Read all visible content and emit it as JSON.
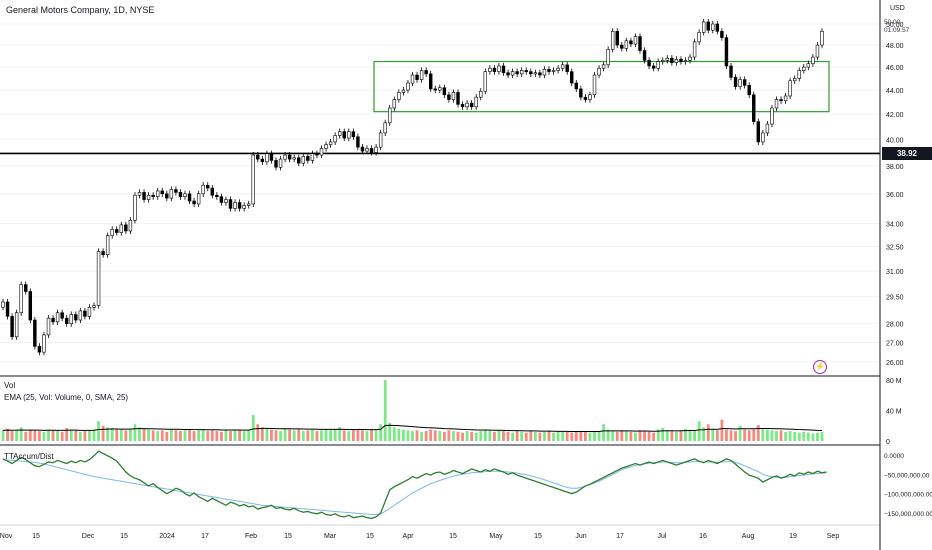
{
  "header": {
    "title": "General Motors Company, 1D, NYSE",
    "currency": "USD",
    "timer_price": "50.00",
    "timer_countdown": "01:09:57",
    "last_price_label": "38.92"
  },
  "panels": {
    "volume_label": "Vol",
    "ema_label": "EMA (25, Vol: Volume, 0, SMA, 25)",
    "accum_label": "TTAccum/Dist"
  },
  "colors": {
    "up": "#ffffff",
    "down": "#000000",
    "candle_border": "#000000",
    "vol_up": "#7ee787",
    "vol_down": "#f28b82",
    "ema": "#000000",
    "box": "#2e9e2e",
    "accum": "#2e7d32",
    "accum_ma": "#7fb8e0",
    "support_line": "#000000",
    "alert_icon": "#9c27b0"
  },
  "icons": {
    "alert": "lightning-icon"
  },
  "chart_data": {
    "type": "candlestick",
    "title": "General Motors Company, 1D, NYSE",
    "price_axis": {
      "ticks": [
        26.0,
        27.0,
        28.0,
        29.5,
        31.0,
        32.5,
        34.0,
        36.0,
        38.0,
        40.0,
        42.0,
        44.0,
        46.0,
        48.0,
        50.0
      ],
      "tick_labels": [
        "26.00",
        "27.00",
        "28.00",
        "29.50",
        "31.00",
        "32.50",
        "34.00",
        "36.00",
        "38.00",
        "40.00",
        "42.00",
        "44.00",
        "46.00",
        "48.00",
        "50.00"
      ],
      "scale": "log"
    },
    "x_axis": {
      "tick_labels": [
        "Nov",
        "15",
        "Dec",
        "15",
        "2024",
        "17",
        "Feb",
        "15",
        "Mar",
        "15",
        "Apr",
        "15",
        "May",
        "15",
        "Jun",
        "17",
        "Jul",
        "16",
        "Aug",
        "19",
        "Sep"
      ]
    },
    "horizontal_line": 38.92,
    "range_box": {
      "low": 42.2,
      "high": 46.5
    },
    "candles": {
      "close": [
        29.2,
        28.4,
        27.3,
        28.6,
        30.2,
        29.8,
        28.2,
        26.8,
        26.5,
        27.4,
        28.3,
        28.1,
        28.6,
        28.3,
        28.0,
        28.5,
        28.2,
        28.7,
        28.4,
        28.9,
        29.0,
        32.2,
        32.0,
        33.2,
        33.6,
        33.4,
        33.9,
        33.5,
        34.2,
        35.9,
        36.1,
        35.6,
        35.9,
        35.8,
        36.2,
        36.0,
        35.7,
        36.3,
        36.1,
        35.8,
        36.0,
        35.5,
        35.3,
        36.0,
        36.6,
        36.4,
        35.9,
        35.8,
        35.4,
        35.6,
        35.0,
        35.4,
        35.0,
        35.2,
        35.3,
        38.8,
        38.5,
        38.3,
        38.9,
        38.4,
        37.9,
        38.5,
        38.8,
        38.5,
        38.6,
        38.2,
        38.7,
        38.4,
        38.9,
        38.8,
        39.3,
        39.6,
        39.8,
        40.3,
        40.6,
        40.1,
        40.6,
        40.2,
        39.4,
        39.1,
        39.3,
        39.0,
        39.4,
        40.5,
        41.3,
        42.5,
        43.2,
        43.8,
        44.0,
        44.6,
        45.3,
        44.9,
        45.7,
        45.4,
        44.1,
        44.0,
        44.2,
        43.6,
        43.2,
        43.8,
        42.8,
        42.6,
        42.9,
        42.6,
        43.4,
        43.9,
        45.6,
        45.9,
        45.6,
        46.1,
        45.5,
        45.3,
        45.6,
        45.4,
        45.7,
        45.6,
        45.4,
        45.5,
        45.3,
        45.8,
        45.6,
        45.7,
        45.9,
        46.2,
        45.6,
        44.6,
        44.1,
        43.4,
        43.2,
        43.6,
        45.3,
        45.9,
        46.2,
        47.6,
        49.3,
        48.0,
        47.7,
        48.4,
        48.1,
        48.8,
        47.5,
        46.6,
        46.1,
        45.9,
        46.5,
        46.6,
        46.8,
        46.4,
        46.7,
        46.5,
        46.6,
        46.9,
        48.3,
        49.2,
        50.2,
        49.4,
        50.0,
        49.3,
        48.7,
        46.1,
        45.1,
        44.3,
        44.9,
        44.4,
        43.6,
        41.4,
        39.8,
        40.5,
        41.2,
        42.5,
        43.2,
        43.1,
        43.5,
        44.8,
        45.0,
        45.7,
        46.0,
        46.3,
        46.9,
        48.0,
        49.3
      ]
    },
    "volume": {
      "axis_tick_labels": [
        "0",
        "40 M",
        "80 M"
      ],
      "values": [
        14,
        16,
        13,
        15,
        18,
        12,
        15,
        14,
        13,
        12,
        15,
        14,
        13,
        12,
        17,
        15,
        14,
        12,
        13,
        14,
        15,
        26,
        20,
        18,
        17,
        16,
        15,
        14,
        16,
        22,
        18,
        16,
        15,
        14,
        13,
        14,
        12,
        15,
        14,
        13,
        14,
        15,
        13,
        14,
        15,
        13,
        14,
        13,
        12,
        14,
        13,
        15,
        14,
        13,
        14,
        34,
        22,
        18,
        16,
        15,
        14,
        13,
        17,
        15,
        14,
        16,
        13,
        14,
        15,
        13,
        14,
        15,
        14,
        15,
        18,
        14,
        13,
        15,
        16,
        14,
        13,
        15,
        14,
        22,
        80,
        24,
        18,
        16,
        15,
        14,
        13,
        14,
        12,
        13,
        15,
        14,
        13,
        12,
        14,
        13,
        12,
        11,
        13,
        12,
        11,
        13,
        14,
        13,
        12,
        14,
        13,
        12,
        11,
        13,
        12,
        11,
        13,
        12,
        11,
        12,
        13,
        11,
        12,
        13,
        12,
        11,
        12,
        13,
        12,
        11,
        12,
        13,
        22,
        15,
        13,
        12,
        14,
        13,
        12,
        11,
        14,
        13,
        12,
        11,
        15,
        17,
        14,
        13,
        12,
        14,
        16,
        15,
        13,
        26,
        18,
        22,
        16,
        14,
        28,
        15,
        14,
        13,
        20,
        15,
        14,
        15,
        21,
        16,
        15,
        14,
        13,
        14,
        12,
        13,
        12,
        11,
        12,
        11,
        10,
        11,
        12
      ],
      "ema": [
        14,
        14.2,
        14.1,
        14.2,
        14.5,
        14.3,
        14.3,
        14.3,
        14.2,
        14.0,
        14.1,
        14.1,
        14.0,
        13.9,
        14.1,
        14.2,
        14.2,
        14.0,
        14.0,
        14.0,
        14.1,
        15.0,
        15.4,
        15.6,
        15.7,
        15.7,
        15.6,
        15.5,
        15.6,
        16.0,
        16.2,
        16.2,
        16.1,
        16.0,
        15.8,
        15.7,
        15.4,
        15.4,
        15.4,
        15.2,
        15.1,
        15.1,
        15.0,
        14.9,
        14.9,
        14.8,
        14.8,
        14.7,
        14.5,
        14.5,
        14.4,
        14.4,
        14.4,
        14.3,
        14.3,
        15.8,
        16.3,
        16.5,
        16.5,
        16.4,
        16.2,
        16.0,
        16.1,
        16.0,
        15.9,
        15.9,
        15.7,
        15.6,
        15.6,
        15.4,
        15.3,
        15.3,
        15.2,
        15.2,
        15.4,
        15.3,
        15.1,
        15.1,
        15.1,
        15.1,
        14.9,
        14.9,
        14.9,
        15.4,
        20.4,
        20.6,
        20.4,
        20.1,
        19.7,
        19.3,
        18.8,
        18.4,
        17.9,
        17.5,
        17.3,
        17.0,
        16.7,
        16.3,
        16.1,
        15.9,
        15.6,
        15.2,
        15.0,
        14.8,
        14.5,
        14.4,
        14.4,
        14.3,
        14.1,
        14.1,
        14.0,
        13.8,
        13.6,
        13.6,
        13.4,
        13.3,
        13.3,
        13.2,
        13.0,
        13.0,
        13.0,
        12.8,
        12.7,
        12.7,
        12.7,
        12.5,
        12.5,
        12.5,
        12.5,
        12.4,
        12.4,
        12.5,
        13.2,
        13.3,
        13.3,
        13.2,
        13.3,
        13.3,
        13.2,
        13.0,
        13.1,
        13.1,
        13.0,
        12.8,
        13.0,
        13.3,
        13.4,
        13.4,
        13.3,
        13.4,
        13.6,
        13.7,
        13.7,
        14.6,
        14.8,
        15.4,
        15.4,
        15.3,
        16.3,
        16.2,
        16.0,
        15.8,
        16.1,
        16.0,
        16.0,
        16.0,
        16.4,
        16.4,
        16.4,
        16.3,
        16.0,
        16.0,
        15.7,
        15.5,
        15.3,
        15.0,
        14.8,
        14.6,
        14.2,
        13.9,
        13.8
      ]
    },
    "accum_dist": {
      "axis_tick_labels": [
        "0.0000",
        "−50,000,000.00",
        "−100,000,000.00",
        "−150,000,000.00"
      ],
      "values": [
        -10,
        -16,
        -22,
        -14,
        -6,
        -12,
        -20,
        -28,
        -30,
        -24,
        -18,
        -20,
        -14,
        -18,
        -22,
        -16,
        -20,
        -14,
        -18,
        -12,
        -2,
        10,
        4,
        -2,
        -8,
        -16,
        -30,
        -44,
        -54,
        -60,
        -64,
        -72,
        -80,
        -74,
        -84,
        -92,
        -100,
        -94,
        -86,
        -90,
        -100,
        -106,
        -98,
        -108,
        -114,
        -120,
        -112,
        -118,
        -124,
        -130,
        -122,
        -126,
        -132,
        -128,
        -134,
        -132,
        -140,
        -136,
        -134,
        -130,
        -138,
        -136,
        -140,
        -142,
        -138,
        -144,
        -148,
        -146,
        -150,
        -152,
        -148,
        -154,
        -156,
        -152,
        -158,
        -160,
        -156,
        -162,
        -160,
        -158,
        -162,
        -164,
        -160,
        -150,
        -120,
        -90,
        -82,
        -76,
        -70,
        -64,
        -56,
        -60,
        -54,
        -48,
        -52,
        -46,
        -44,
        -50,
        -46,
        -40,
        -44,
        -48,
        -42,
        -36,
        -40,
        -44,
        -38,
        -42,
        -36,
        -40,
        -44,
        -50,
        -46,
        -52,
        -56,
        -60,
        -64,
        -68,
        -72,
        -76,
        -80,
        -84,
        -88,
        -92,
        -96,
        -100,
        -96,
        -88,
        -80,
        -76,
        -70,
        -64,
        -58,
        -52,
        -46,
        -40,
        -34,
        -30,
        -26,
        -22,
        -26,
        -22,
        -18,
        -22,
        -18,
        -14,
        -18,
        -22,
        -26,
        -22,
        -18,
        -14,
        -10,
        -16,
        -20,
        -14,
        -18,
        -22,
        -16,
        -10,
        -14,
        -24,
        -34,
        -44,
        -52,
        -56,
        -60,
        -70,
        -64,
        -58,
        -54,
        -60,
        -56,
        -50,
        -54,
        -46,
        -50,
        -44,
        -48,
        -42,
        -46,
        -44
      ],
      "ma": [
        -12,
        -13,
        -14,
        -15,
        -16,
        -17,
        -18,
        -19,
        -21,
        -23,
        -26,
        -29,
        -32,
        -35,
        -38,
        -41,
        -44,
        -47,
        -50,
        -53,
        -56,
        -58,
        -60,
        -62,
        -64,
        -66,
        -68,
        -70,
        -72,
        -74,
        -76,
        -78,
        -80,
        -82,
        -84,
        -86,
        -88,
        -90,
        -92,
        -94,
        -96,
        -98,
        -100,
        -102,
        -104,
        -106,
        -108,
        -110,
        -112,
        -114,
        -116,
        -118,
        -120,
        -122,
        -124,
        -126,
        -128,
        -130,
        -131,
        -132,
        -133,
        -134,
        -135,
        -136,
        -137,
        -138,
        -139,
        -140,
        -141,
        -142,
        -143,
        -144,
        -145,
        -146,
        -147,
        -148,
        -149,
        -150,
        -151,
        -152,
        -153,
        -154,
        -154,
        -152,
        -146,
        -138,
        -130,
        -122,
        -114,
        -106,
        -98,
        -92,
        -86,
        -80,
        -74,
        -70,
        -66,
        -62,
        -58,
        -55,
        -52,
        -50,
        -48,
        -46,
        -45,
        -44,
        -43,
        -42,
        -42,
        -42,
        -43,
        -44,
        -45,
        -47,
        -49,
        -51,
        -54,
        -57,
        -60,
        -64,
        -68,
        -72,
        -76,
        -80,
        -84,
        -86,
        -86,
        -84,
        -80,
        -76,
        -72,
        -68,
        -62,
        -56,
        -50,
        -44,
        -38,
        -34,
        -30,
        -27,
        -25,
        -23,
        -21,
        -20,
        -19,
        -18,
        -18,
        -19,
        -20,
        -20,
        -19,
        -18,
        -17,
        -17,
        -18,
        -18,
        -18,
        -19,
        -18,
        -17,
        -17,
        -19,
        -23,
        -28,
        -33,
        -38,
        -43,
        -50,
        -54,
        -56,
        -58,
        -58,
        -58,
        -56,
        -55,
        -53,
        -52,
        -50,
        -49,
        -48,
        -47,
        -46
      ]
    }
  }
}
